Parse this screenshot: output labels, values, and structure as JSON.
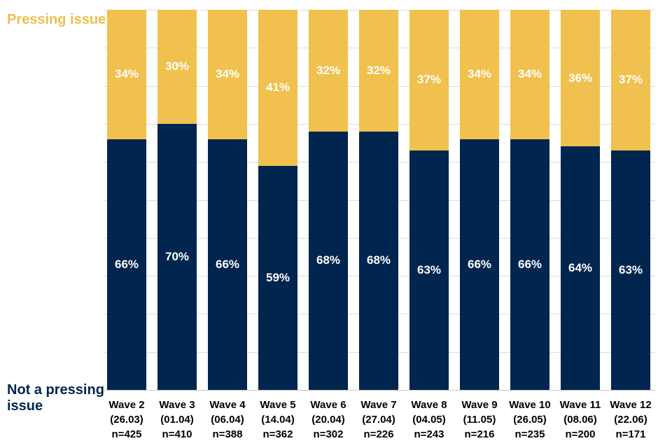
{
  "legend": {
    "pressing_label": "Pressing issue",
    "not_pressing_label": "Not a pressing issue"
  },
  "colors": {
    "pressing": "#F0C14E",
    "not_pressing": "#00254E",
    "pressing_text": "#EFBE4B",
    "not_pressing_text": "#00254E",
    "gridline": "#DCDCDC",
    "baseline": "#C9C9C9",
    "value_label": "#FFFFFF",
    "axis_label": "#000000"
  },
  "chart_data": {
    "type": "bar",
    "stacked": true,
    "units": "percent",
    "ylim": [
      0,
      100
    ],
    "gridline_step": 10,
    "legend_position": "left",
    "categories": [
      {
        "wave": "Wave 2",
        "date": "(26.03)",
        "n": "n=425"
      },
      {
        "wave": "Wave 3",
        "date": "(01.04)",
        "n": "n=410"
      },
      {
        "wave": "Wave 4",
        "date": "(06.04)",
        "n": "n=388"
      },
      {
        "wave": "Wave 5",
        "date": "(14.04)",
        "n": "n=362"
      },
      {
        "wave": "Wave 6",
        "date": "(20.04)",
        "n": "n=302"
      },
      {
        "wave": "Wave 7",
        "date": "(27.04)",
        "n": "n=226"
      },
      {
        "wave": "Wave 8",
        "date": "(04.05)",
        "n": "n=243"
      },
      {
        "wave": "Wave 9",
        "date": "(11.05)",
        "n": "n=216"
      },
      {
        "wave": "Wave 10",
        "date": "(26.05)",
        "n": "n=235"
      },
      {
        "wave": "Wave 11",
        "date": "(08.06)",
        "n": "n=200"
      },
      {
        "wave": "Wave 12",
        "date": "(22.06)",
        "n": "n=171"
      }
    ],
    "series": [
      {
        "name": "Pressing issue",
        "color": "#F0C14E",
        "values": [
          34,
          30,
          34,
          41,
          32,
          32,
          37,
          34,
          34,
          36,
          37
        ]
      },
      {
        "name": "Not a pressing issue",
        "color": "#00254E",
        "values": [
          66,
          70,
          66,
          59,
          68,
          68,
          63,
          66,
          66,
          64,
          63
        ]
      }
    ]
  }
}
